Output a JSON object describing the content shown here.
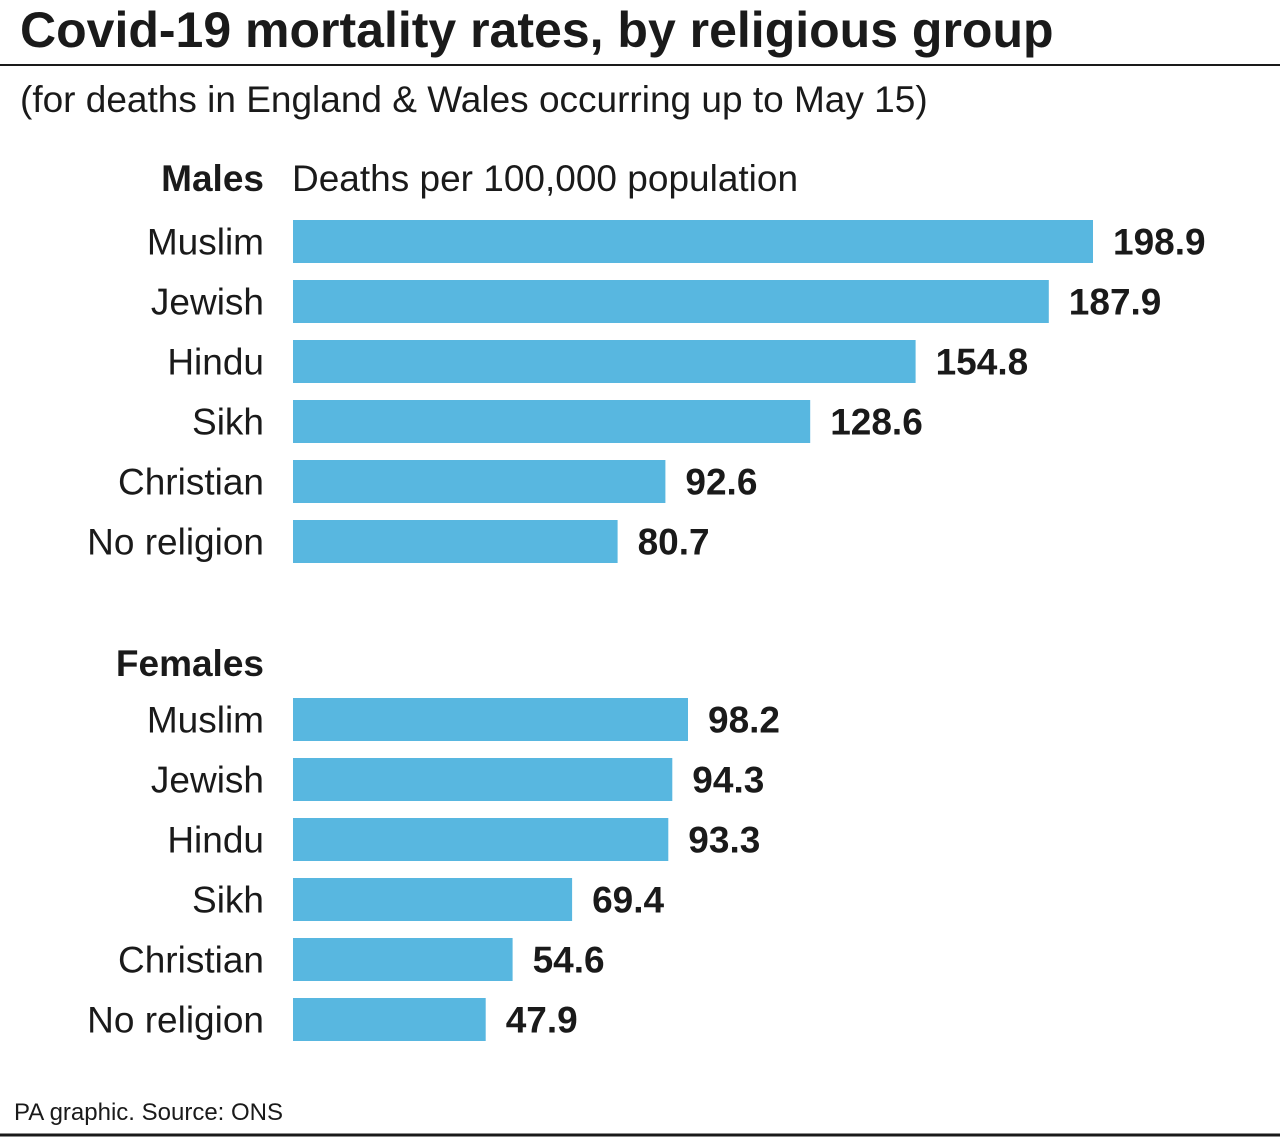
{
  "chart_data": {
    "type": "bar",
    "orientation": "horizontal",
    "title": "Covid-19 mortality rates, by religious group",
    "subtitle": "(for deaths in England & Wales occurring up to May 15)",
    "xlabel": "Deaths per 100,000 population",
    "ylabel": "",
    "categories": [
      "Muslim",
      "Jewish",
      "Hindu",
      "Sikh",
      "Christian",
      "No religion"
    ],
    "series": [
      {
        "name": "Males",
        "values": [
          198.9,
          187.9,
          154.8,
          128.6,
          92.6,
          80.7
        ],
        "value_labels": [
          "198.9",
          "187.9",
          "154.8",
          "128.6",
          "92.6",
          "80.7"
        ]
      },
      {
        "name": "Females",
        "values": [
          98.2,
          94.3,
          93.3,
          69.4,
          54.6,
          47.9
        ],
        "value_labels": [
          "98.2",
          "94.3",
          "93.3",
          "69.4",
          "54.6",
          "47.9"
        ]
      }
    ],
    "xlim": [
      0,
      198.9
    ],
    "grid": false,
    "legend": "none",
    "bar_color": "#58b7e0",
    "source": "PA graphic. Source: ONS"
  },
  "colors": {
    "bar": "#58b7e0",
    "text": "#1a1a1a",
    "rule": "#1a1a1a"
  }
}
